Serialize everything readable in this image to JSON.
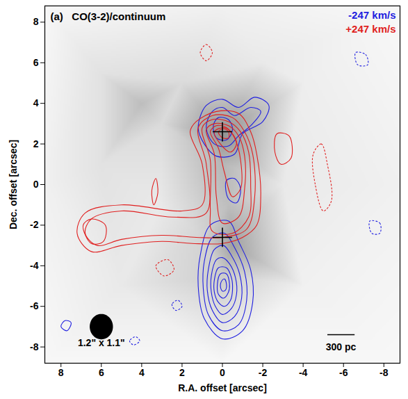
{
  "chart_data": {
    "type": "contour",
    "panel": "(a)",
    "title": "CO(3-2)/continuum",
    "x_label": "R.A. offset [arcsec]",
    "y_label": "Dec. offset [arcsec]",
    "xlim": [
      8.8,
      -8.8
    ],
    "ylim": [
      -8.8,
      8.8
    ],
    "xticks": [
      8,
      6,
      4,
      2,
      0,
      -2,
      -4,
      -6,
      -8
    ],
    "yticks": [
      -8,
      -6,
      -4,
      -2,
      0,
      2,
      4,
      6,
      8
    ],
    "legend": "top-right",
    "continuum_range": [
      0,
      1
    ],
    "continuum": [
      [
        8.8,
        8.8,
        0.05
      ],
      [
        -8.8,
        8.8,
        0.05
      ],
      [
        8.8,
        -8.8,
        0.05
      ],
      [
        -8.8,
        -8.8,
        0.05
      ],
      [
        0,
        8.8,
        0.1
      ],
      [
        0,
        -8.8,
        0.05
      ],
      [
        8.8,
        0,
        0.1
      ],
      [
        -8.8,
        0,
        0.1
      ],
      [
        0,
        2.5,
        0.75
      ],
      [
        0,
        1,
        0.5
      ],
      [
        -0.3,
        -1,
        0.45
      ],
      [
        -0.5,
        -3,
        0.65
      ],
      [
        0,
        -4.5,
        0.35
      ],
      [
        1,
        -2.5,
        0.3
      ],
      [
        4,
        4,
        0.45
      ],
      [
        3,
        3,
        0.25
      ],
      [
        2,
        5,
        0.25
      ],
      [
        6,
        1,
        0.2
      ],
      [
        -3,
        0,
        0.15
      ],
      [
        3,
        -1,
        0.15
      ],
      [
        5,
        -5,
        0.15
      ],
      [
        -4,
        5,
        0.12
      ],
      [
        -4,
        -5,
        0.1
      ],
      [
        6,
        5.5,
        0.2
      ],
      [
        -2,
        6,
        0.15
      ]
    ],
    "nuclei": [
      [
        0,
        2.6
      ],
      [
        0,
        -2.6
      ]
    ],
    "beam": {
      "label": "1.2\" x 1.1\"",
      "major": 1.2,
      "minor": 1.1,
      "x": 6,
      "y": -7
    },
    "scale_bar": {
      "label": "300 pc",
      "length": 1.35,
      "x": -5.2,
      "y": -7.4
    },
    "series": [
      {
        "name": "-247 km/s",
        "color": "#1f1fe0",
        "contours": [
          [
            [
              0.6,
              -2
            ],
            [
              1.1,
              -3.5
            ],
            [
              1.2,
              -5
            ],
            [
              0.9,
              -6.6
            ],
            [
              0,
              -7.6
            ],
            [
              -1,
              -7.2
            ],
            [
              -1.5,
              -5.8
            ],
            [
              -1.4,
              -4.2
            ],
            [
              -0.8,
              -2.8
            ],
            [
              -0.3,
              -1.8
            ]
          ],
          [
            [
              0.5,
              -2.6
            ],
            [
              0.9,
              -3.8
            ],
            [
              0.95,
              -5.1
            ],
            [
              0.7,
              -6.4
            ],
            [
              0,
              -7.2
            ],
            [
              -0.8,
              -6.9
            ],
            [
              -1.2,
              -5.7
            ],
            [
              -1.1,
              -4.3
            ],
            [
              -0.6,
              -3.1
            ],
            [
              -0.1,
              -2.4
            ]
          ],
          [
            [
              0.4,
              -3.2
            ],
            [
              0.7,
              -4.2
            ],
            [
              0.75,
              -5.2
            ],
            [
              0.5,
              -6.2
            ],
            [
              0,
              -6.8
            ],
            [
              -0.6,
              -6.5
            ],
            [
              -0.95,
              -5.6
            ],
            [
              -0.85,
              -4.4
            ],
            [
              -0.45,
              -3.5
            ],
            [
              -0.05,
              -3.0
            ]
          ],
          [
            [
              0.3,
              -3.7
            ],
            [
              0.55,
              -4.5
            ],
            [
              0.55,
              -5.3
            ],
            [
              0.35,
              -6.0
            ],
            [
              0,
              -6.4
            ],
            [
              -0.45,
              -6.1
            ],
            [
              -0.7,
              -5.4
            ],
            [
              -0.65,
              -4.6
            ],
            [
              -0.35,
              -3.9
            ],
            [
              0,
              -3.6
            ]
          ],
          [
            [
              0.2,
              -4.1
            ],
            [
              0.4,
              -4.7
            ],
            [
              0.4,
              -5.3
            ],
            [
              0.2,
              -5.8
            ],
            [
              -0.1,
              -6.0
            ],
            [
              -0.4,
              -5.7
            ],
            [
              -0.5,
              -5.2
            ],
            [
              -0.45,
              -4.6
            ],
            [
              -0.2,
              -4.1
            ]
          ],
          [
            [
              0.1,
              -4.4
            ],
            [
              0.25,
              -4.9
            ],
            [
              0.2,
              -5.4
            ],
            [
              -0.05,
              -5.6
            ],
            [
              -0.3,
              -5.3
            ],
            [
              -0.35,
              -4.9
            ],
            [
              -0.2,
              -4.4
            ]
          ],
          [
            [
              0,
              -4.7
            ],
            [
              0.1,
              -5.0
            ],
            [
              0,
              -5.25
            ],
            [
              -0.15,
              -5.2
            ],
            [
              -0.2,
              -4.9
            ],
            [
              -0.1,
              -4.65
            ]
          ],
          [
            [
              -0.2,
              0.2
            ],
            [
              -0.3,
              -0.7
            ],
            [
              -0.7,
              -0.9
            ],
            [
              -0.9,
              -0.2
            ],
            [
              -0.6,
              0.3
            ]
          ],
          [
            [
              1.2,
              2.8
            ],
            [
              0.8,
              3.9
            ],
            [
              0,
              4.2
            ],
            [
              -0.8,
              3.8
            ],
            [
              -1.6,
              4.3
            ],
            [
              -2.3,
              3.9
            ],
            [
              -2.0,
              3.1
            ],
            [
              -1.0,
              2.5
            ],
            [
              -0.6,
              1.5
            ],
            [
              0.3,
              1.4
            ],
            [
              0.9,
              2.0
            ]
          ],
          [
            [
              0.8,
              2.8
            ],
            [
              0.5,
              3.6
            ],
            [
              0,
              3.8
            ],
            [
              -0.6,
              3.4
            ],
            [
              -1.4,
              3.8
            ],
            [
              -1.9,
              3.6
            ],
            [
              -1.5,
              3.0
            ],
            [
              -0.8,
              2.4
            ],
            [
              -0.3,
              1.9
            ],
            [
              0.4,
              2.0
            ]
          ],
          [
            [
              0.45,
              2.9
            ],
            [
              0.2,
              3.3
            ],
            [
              -0.3,
              3.2
            ],
            [
              -0.5,
              2.7
            ],
            [
              -0.2,
              2.2
            ],
            [
              0.3,
              2.3
            ]
          ],
          [
            [
              7.5,
              -6.8
            ],
            [
              7.8,
              -6.7
            ],
            [
              8,
              -7.0
            ],
            [
              7.7,
              -7.2
            ]
          ]
        ],
        "negative_contours": [
          [
            [
              -6.6,
              6.5
            ],
            [
              -7.1,
              6.4
            ],
            [
              -7.2,
              5.9
            ],
            [
              -6.7,
              5.9
            ]
          ],
          [
            [
              -7.3,
              -1.8
            ],
            [
              -7.8,
              -1.9
            ],
            [
              -7.8,
              -2.4
            ],
            [
              -7.4,
              -2.4
            ]
          ],
          [
            [
              2.2,
              -5.7
            ],
            [
              2.5,
              -5.9
            ],
            [
              2.3,
              -6.2
            ],
            [
              2.0,
              -6.0
            ]
          ],
          [
            [
              4.3,
              -7.5
            ],
            [
              4.6,
              -7.7
            ],
            [
              4.4,
              -7.9
            ],
            [
              4.1,
              -7.7
            ]
          ]
        ]
      },
      {
        "name": "+247 km/s",
        "color": "#e01f1f",
        "contours": [
          [
            [
              1.3,
              3.1
            ],
            [
              1.6,
              2.6
            ],
            [
              1.0,
              1.0
            ],
            [
              1.0,
              -1.0
            ],
            [
              2,
              -1.3
            ],
            [
              5,
              -1.0
            ],
            [
              6.8,
              -1.4
            ],
            [
              7.2,
              -2.4
            ],
            [
              6.5,
              -3.3
            ],
            [
              5,
              -3.0
            ],
            [
              3,
              -2.8
            ],
            [
              1.5,
              -2.9
            ],
            [
              0,
              -2.9
            ],
            [
              -1.0,
              -2.6
            ],
            [
              -1.7,
              -2.0
            ],
            [
              -1.9,
              -0.5
            ],
            [
              -1.7,
              1.5
            ],
            [
              -1.4,
              2.6
            ],
            [
              -0.8,
              3.5
            ],
            [
              0.3,
              3.6
            ]
          ],
          [
            [
              1.2,
              2.8
            ],
            [
              0.8,
              1.0
            ],
            [
              0.8,
              -1.4
            ],
            [
              2.5,
              -1.6
            ],
            [
              5,
              -1.3
            ],
            [
              6.5,
              -1.7
            ],
            [
              6.8,
              -2.4
            ],
            [
              6.2,
              -3.0
            ],
            [
              5,
              -2.7
            ],
            [
              3,
              -2.5
            ],
            [
              1.3,
              -2.6
            ],
            [
              0,
              -2.6
            ],
            [
              -1.2,
              -2.2
            ],
            [
              -1.6,
              -0.6
            ],
            [
              -1.5,
              1.5
            ],
            [
              -1.1,
              2.6
            ],
            [
              -0.5,
              3.3
            ],
            [
              0.5,
              3.4
            ]
          ],
          [
            [
              1.0,
              2.8
            ],
            [
              0.6,
              1.2
            ],
            [
              0.6,
              -1.2
            ],
            [
              0.5,
              -2.3
            ],
            [
              -0.5,
              -2.4
            ],
            [
              -1.3,
              -1.6
            ],
            [
              -1.4,
              0
            ],
            [
              -1.3,
              1.6
            ],
            [
              -0.9,
              2.6
            ],
            [
              -0.3,
              3.1
            ],
            [
              0.5,
              3.2
            ]
          ],
          [
            [
              6.9,
              -2.0
            ],
            [
              6.5,
              -1.7
            ],
            [
              5.8,
              -2.0
            ],
            [
              5.9,
              -2.8
            ],
            [
              6.5,
              -2.9
            ]
          ],
          [
            [
              0.8,
              2.7
            ],
            [
              0.4,
              1.5
            ],
            [
              0.3,
              -0.6
            ],
            [
              0,
              -1.9
            ],
            [
              -0.8,
              -1.6
            ],
            [
              -1.1,
              -0.2
            ],
            [
              -1.1,
              1.4
            ],
            [
              -0.8,
              2.4
            ],
            [
              -0.3,
              2.9
            ],
            [
              0.4,
              3.0
            ]
          ],
          [
            [
              0.6,
              2.6
            ],
            [
              0.2,
              1.8
            ],
            [
              -0.1,
              0.6
            ],
            [
              -0.5,
              -0.6
            ],
            [
              -0.9,
              -0.2
            ],
            [
              -0.9,
              1.2
            ],
            [
              -0.6,
              2.3
            ],
            [
              -0.2,
              2.8
            ],
            [
              0.3,
              2.9
            ]
          ],
          [
            [
              0.4,
              2.6
            ],
            [
              0.1,
              2.0
            ],
            [
              -0.4,
              1.6
            ],
            [
              -0.7,
              2.0
            ],
            [
              -0.5,
              2.5
            ],
            [
              -0.1,
              2.8
            ]
          ],
          [
            [
              0.2,
              2.6
            ],
            [
              0,
              2.3
            ],
            [
              -0.3,
              2.3
            ],
            [
              -0.3,
              2.6
            ],
            [
              -0.05,
              2.75
            ]
          ],
          [
            [
              -2.7,
              2.5
            ],
            [
              -3.3,
              2.4
            ],
            [
              -3.4,
              1.3
            ],
            [
              -2.9,
              1.0
            ],
            [
              -2.6,
              1.6
            ]
          ],
          [
            [
              3.3,
              0.3
            ],
            [
              3.5,
              -0.3
            ],
            [
              3.4,
              -1.0
            ],
            [
              3.2,
              -0.4
            ]
          ]
        ],
        "negative_contours": [
          [
            [
              1.1,
              6.5
            ],
            [
              0.8,
              6.9
            ],
            [
              0.5,
              6.5
            ],
            [
              0.8,
              6.1
            ]
          ],
          [
            [
              -4.5,
              1.5
            ],
            [
              -4.9,
              2.0
            ],
            [
              -5.2,
              1.0
            ],
            [
              -5.4,
              -0.8
            ],
            [
              -5.0,
              -1.3
            ],
            [
              -4.6,
              0
            ]
          ],
          [
            [
              3.3,
              -4.0
            ],
            [
              2.7,
              -3.7
            ],
            [
              2.4,
              -4.2
            ],
            [
              2.9,
              -4.5
            ]
          ]
        ]
      }
    ]
  }
}
